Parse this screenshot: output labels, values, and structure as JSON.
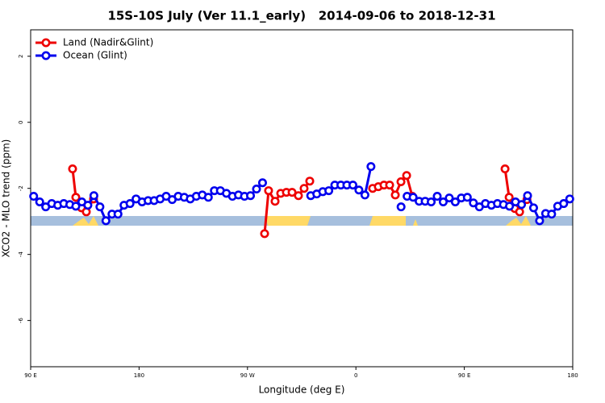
{
  "chart_data": {
    "type": "line",
    "title": "15S-10S July (Ver 11.1_early)   2014-09-06 to 2018-12-31",
    "xlabel": "Longitude (deg E)",
    "ylabel": "XCO2 - MLO trend (ppm)",
    "xlim": [
      90,
      540
    ],
    "xticks": [
      {
        "value": 90,
        "label": "90 E"
      },
      {
        "value": 180,
        "label": "180"
      },
      {
        "value": 270,
        "label": "90 W"
      },
      {
        "value": 360,
        "label": "0"
      },
      {
        "value": 450,
        "label": "90 E"
      },
      {
        "value": 540,
        "label": "180"
      }
    ],
    "ylim": [
      -7.4,
      2.8
    ],
    "yticks": [
      -6,
      -4,
      -2,
      0,
      2
    ],
    "legend": "top-left",
    "series": [
      {
        "name": "Land (Nadir&Glint)",
        "color": "#ee0000",
        "x": [
          124.8,
          127.5,
          132.2,
          136.2,
          142.2,
          200,
          284.2,
          287.5,
          292.9,
          297.6,
          302.3,
          307,
          312.3,
          317,
          321.7,
          350,
          373.9,
          378.6,
          383.3,
          388,
          392.7,
          397.4,
          402.1,
          406.8,
          450,
          483.8,
          487.2,
          491.9,
          495.9,
          502
        ],
        "values": [
          -1.41,
          -2.27,
          -2.59,
          -2.71,
          -2.32,
          null,
          -3.37,
          -2.07,
          -2.39,
          -2.15,
          -2.12,
          -2.12,
          -2.22,
          -2.0,
          -1.78,
          null,
          -2.0,
          -1.95,
          -1.9,
          -1.9,
          -2.2,
          -1.8,
          -1.61,
          -2.24,
          null,
          -1.41,
          -2.27,
          -2.61,
          -2.71,
          -2.34
        ]
      },
      {
        "name": "Ocean (Glint)",
        "color": "#0000ee",
        "x": [
          92.5,
          97.5,
          102.5,
          107.5,
          112.5,
          117.5,
          122.5,
          127.5,
          132.5,
          137.5,
          142.5,
          147.5,
          152.5,
          157.5,
          162.5,
          167.5,
          172.5,
          177.5,
          182.5,
          187.5,
          192.5,
          197.5,
          202.5,
          207.5,
          212.5,
          217.5,
          222.5,
          227.5,
          232.5,
          237.5,
          242.5,
          247.5,
          252.5,
          257.5,
          262.5,
          267.5,
          272.5,
          277.5,
          282.5,
          300,
          322.5,
          327.5,
          332.5,
          337.5,
          342.5,
          347.5,
          352.5,
          357.5,
          362.5,
          367.5,
          372.5,
          385,
          397.5,
          400,
          402.5,
          407.5,
          412.5,
          417.5,
          422.5,
          427.5,
          432.5,
          437.5,
          442.5,
          447.5,
          452.5,
          457.5,
          462.5,
          467.5,
          472.5,
          477.5,
          482.5,
          487.5,
          492.5,
          497.5,
          502.5,
          507.5,
          512.5,
          517.5,
          522.5,
          527.5,
          532.5,
          537.5
        ],
        "values": [
          -2.24,
          -2.41,
          -2.56,
          -2.46,
          -2.51,
          -2.46,
          -2.49,
          -2.54,
          -2.41,
          -2.51,
          -2.22,
          -2.56,
          -2.98,
          -2.78,
          -2.78,
          -2.51,
          -2.46,
          -2.32,
          -2.41,
          -2.37,
          -2.37,
          -2.32,
          -2.24,
          -2.34,
          -2.24,
          -2.27,
          -2.32,
          -2.24,
          -2.2,
          -2.27,
          -2.07,
          -2.07,
          -2.15,
          -2.24,
          -2.2,
          -2.24,
          -2.22,
          -2.02,
          -1.83,
          null,
          -2.22,
          -2.17,
          -2.1,
          -2.07,
          -1.9,
          -1.9,
          -1.9,
          -1.9,
          -2.05,
          -2.2,
          -1.34,
          null,
          -2.56,
          null,
          -2.24,
          -2.27,
          -2.39,
          -2.39,
          -2.41,
          -2.24,
          -2.41,
          -2.29,
          -2.41,
          -2.29,
          -2.27,
          -2.44,
          -2.56,
          -2.46,
          -2.51,
          -2.46,
          -2.49,
          -2.54,
          -2.41,
          -2.49,
          -2.22,
          -2.59,
          -2.98,
          -2.76,
          -2.78,
          -2.54,
          -2.46,
          -2.32
        ]
      }
    ]
  }
}
